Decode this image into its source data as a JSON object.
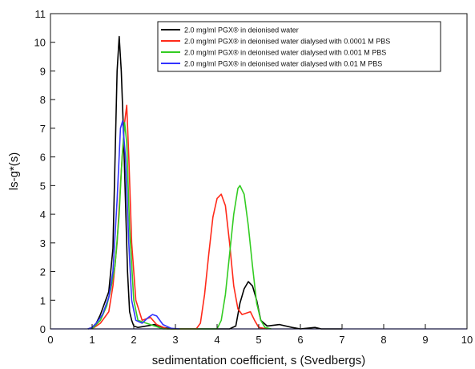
{
  "chart_data": {
    "type": "line",
    "xlabel": "sedimentation coefficient, s (Svedbergs)",
    "ylabel": "ls-g*(s)",
    "xlim": [
      0,
      10
    ],
    "ylim": [
      0,
      11
    ],
    "x_ticks": [
      "0",
      "1",
      "2",
      "3",
      "4",
      "5",
      "6",
      "7",
      "8",
      "9",
      "10"
    ],
    "y_ticks": [
      "0",
      "1",
      "2",
      "3",
      "4",
      "5",
      "6",
      "7",
      "8",
      "9",
      "10",
      "11"
    ],
    "grid": false,
    "legend_position": "top-right",
    "series": [
      {
        "name": "2.0 mg/ml PGX® in deionised water",
        "color": "#000000",
        "points": [
          [
            0.9,
            0
          ],
          [
            1.0,
            0.05
          ],
          [
            1.1,
            0.2
          ],
          [
            1.2,
            0.5
          ],
          [
            1.3,
            0.9
          ],
          [
            1.4,
            1.3
          ],
          [
            1.5,
            2.8
          ],
          [
            1.6,
            9.0
          ],
          [
            1.65,
            10.2
          ],
          [
            1.7,
            9.0
          ],
          [
            1.75,
            7.0
          ],
          [
            1.8,
            4.5
          ],
          [
            1.85,
            2.0
          ],
          [
            1.9,
            0.6
          ],
          [
            1.95,
            0.3
          ],
          [
            2.0,
            0.1
          ],
          [
            2.1,
            0.05
          ],
          [
            2.3,
            0.1
          ],
          [
            2.5,
            0.15
          ],
          [
            2.7,
            0.05
          ],
          [
            2.9,
            0
          ],
          [
            4.3,
            0
          ],
          [
            4.45,
            0.1
          ],
          [
            4.55,
            0.9
          ],
          [
            4.65,
            1.4
          ],
          [
            4.75,
            1.65
          ],
          [
            4.85,
            1.5
          ],
          [
            4.95,
            1.0
          ],
          [
            5.05,
            0.3
          ],
          [
            5.2,
            0.1
          ],
          [
            5.5,
            0.15
          ],
          [
            5.8,
            0.05
          ],
          [
            6.0,
            0
          ],
          [
            6.35,
            0.05
          ],
          [
            6.5,
            0
          ],
          [
            7.0,
            0
          ]
        ]
      },
      {
        "name": "2.0 mg/ml PGX® in deionised water dialysed with 0.0001 M PBS",
        "color": "#ff2a1a",
        "points": [
          [
            1.0,
            0
          ],
          [
            1.2,
            0.2
          ],
          [
            1.4,
            0.6
          ],
          [
            1.5,
            1.5
          ],
          [
            1.6,
            3.0
          ],
          [
            1.7,
            5.5
          ],
          [
            1.78,
            7.2
          ],
          [
            1.83,
            7.8
          ],
          [
            1.88,
            6.0
          ],
          [
            1.95,
            3.0
          ],
          [
            2.05,
            1.0
          ],
          [
            2.2,
            0.3
          ],
          [
            2.4,
            0.4
          ],
          [
            2.55,
            0.15
          ],
          [
            2.8,
            0
          ],
          [
            3.5,
            0
          ],
          [
            3.6,
            0.2
          ],
          [
            3.7,
            1.2
          ],
          [
            3.8,
            2.6
          ],
          [
            3.9,
            3.9
          ],
          [
            4.0,
            4.55
          ],
          [
            4.1,
            4.7
          ],
          [
            4.2,
            4.3
          ],
          [
            4.3,
            3.0
          ],
          [
            4.4,
            1.5
          ],
          [
            4.5,
            0.7
          ],
          [
            4.6,
            0.5
          ],
          [
            4.7,
            0.55
          ],
          [
            4.8,
            0.6
          ],
          [
            4.9,
            0.3
          ],
          [
            5.0,
            0.05
          ],
          [
            5.2,
            0
          ]
        ]
      },
      {
        "name": "2.0 mg/ml PGX® in deionised water dialysed with 0.001 M PBS",
        "color": "#33cc22",
        "points": [
          [
            1.0,
            0
          ],
          [
            1.2,
            0.3
          ],
          [
            1.35,
            0.8
          ],
          [
            1.45,
            1.4
          ],
          [
            1.55,
            2.2
          ],
          [
            1.65,
            4.0
          ],
          [
            1.72,
            6.0
          ],
          [
            1.78,
            7.2
          ],
          [
            1.83,
            6.5
          ],
          [
            1.9,
            3.5
          ],
          [
            2.0,
            1.0
          ],
          [
            2.1,
            0.3
          ],
          [
            2.3,
            0.2
          ],
          [
            2.5,
            0.1
          ],
          [
            2.7,
            0
          ],
          [
            4.0,
            0
          ],
          [
            4.1,
            0.3
          ],
          [
            4.2,
            1.2
          ],
          [
            4.3,
            2.6
          ],
          [
            4.4,
            4.0
          ],
          [
            4.5,
            4.9
          ],
          [
            4.55,
            5.0
          ],
          [
            4.65,
            4.7
          ],
          [
            4.75,
            3.6
          ],
          [
            4.85,
            2.2
          ],
          [
            4.95,
            0.9
          ],
          [
            5.05,
            0.3
          ],
          [
            5.15,
            0.05
          ],
          [
            5.3,
            0
          ]
        ]
      },
      {
        "name": "2.0 mg/ml PGX® in deionised water dialysed with 0.01 M PBS",
        "color": "#3333ff",
        "points": [
          [
            0.9,
            0
          ],
          [
            1.0,
            0.05
          ],
          [
            1.1,
            0.2
          ],
          [
            1.25,
            0.5
          ],
          [
            1.4,
            1.1
          ],
          [
            1.5,
            2.0
          ],
          [
            1.6,
            4.5
          ],
          [
            1.68,
            7.0
          ],
          [
            1.73,
            7.25
          ],
          [
            1.8,
            6.0
          ],
          [
            1.88,
            3.0
          ],
          [
            1.95,
            1.0
          ],
          [
            2.05,
            0.3
          ],
          [
            2.2,
            0.2
          ],
          [
            2.35,
            0.4
          ],
          [
            2.45,
            0.5
          ],
          [
            2.55,
            0.45
          ],
          [
            2.7,
            0.15
          ],
          [
            2.9,
            0.02
          ],
          [
            3.1,
            0
          ]
        ]
      }
    ]
  }
}
